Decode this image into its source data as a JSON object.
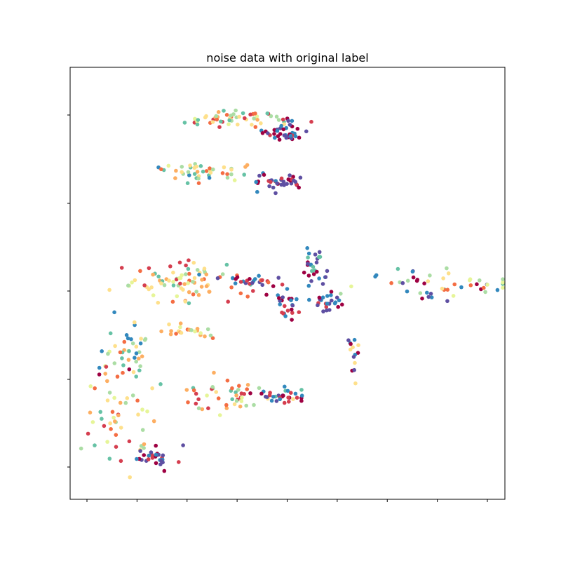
{
  "chart_data": {
    "type": "scatter",
    "title": "noise data with original label",
    "xlabel": "",
    "ylabel": "",
    "xlim": [
      0.0,
      1.0
    ],
    "ylim": [
      0.0,
      1.0
    ],
    "grid": false,
    "x_tick_count": 9,
    "y_tick_count": 5,
    "colormap": "Spectral",
    "palette": [
      "#9e0142",
      "#d53e4f",
      "#f46d43",
      "#fdae61",
      "#fee08b",
      "#e6f598",
      "#abdda4",
      "#66c2a5",
      "#3288bd",
      "#5e4fa2"
    ],
    "clusters": [
      {
        "center": [
          0.38,
          0.925
        ],
        "spread": [
          0.065,
          0.012
        ],
        "count": 55,
        "colors": [
          2,
          3,
          4,
          5,
          6,
          7,
          1
        ]
      },
      {
        "center": [
          0.49,
          0.89
        ],
        "spread": [
          0.025,
          0.012
        ],
        "count": 40,
        "colors": [
          0,
          1,
          9,
          8,
          0
        ]
      },
      {
        "center": [
          0.3,
          0.79
        ],
        "spread": [
          0.07,
          0.015
        ],
        "count": 45,
        "colors": [
          3,
          4,
          5,
          6,
          7,
          2,
          8
        ]
      },
      {
        "center": [
          0.48,
          0.765
        ],
        "spread": [
          0.035,
          0.012
        ],
        "count": 35,
        "colors": [
          9,
          8,
          0,
          1,
          9
        ]
      },
      {
        "center": [
          0.23,
          0.505
        ],
        "spread": [
          0.07,
          0.022
        ],
        "count": 70,
        "colors": [
          2,
          3,
          4,
          5,
          6,
          1,
          7
        ]
      },
      {
        "center": [
          0.29,
          0.54
        ],
        "spread": [
          0.015,
          0.02
        ],
        "count": 10,
        "colors": [
          4,
          6,
          3,
          8
        ]
      },
      {
        "center": [
          0.42,
          0.51
        ],
        "spread": [
          0.03,
          0.008
        ],
        "count": 25,
        "colors": [
          9,
          8,
          0,
          1,
          2
        ]
      },
      {
        "center": [
          0.565,
          0.55
        ],
        "spread": [
          0.012,
          0.025
        ],
        "count": 22,
        "colors": [
          9,
          8,
          0,
          7
        ]
      },
      {
        "center": [
          0.5,
          0.445
        ],
        "spread": [
          0.018,
          0.02
        ],
        "count": 25,
        "colors": [
          9,
          8,
          0,
          1
        ]
      },
      {
        "center": [
          0.605,
          0.455
        ],
        "spread": [
          0.018,
          0.01
        ],
        "count": 20,
        "colors": [
          9,
          8,
          0,
          1
        ]
      },
      {
        "center": [
          0.58,
          0.49
        ],
        "spread": [
          0.01,
          0.025
        ],
        "count": 10,
        "colors": [
          9,
          0,
          8
        ]
      },
      {
        "center": [
          0.25,
          0.38
        ],
        "spread": [
          0.04,
          0.01
        ],
        "count": 22,
        "colors": [
          2,
          3,
          4,
          5,
          6,
          7
        ]
      },
      {
        "center": [
          0.1,
          0.32
        ],
        "spread": [
          0.04,
          0.04
        ],
        "count": 45,
        "colors": [
          2,
          3,
          4,
          5,
          6,
          7,
          8,
          0
        ]
      },
      {
        "center": [
          0.34,
          0.215
        ],
        "spread": [
          0.055,
          0.02
        ],
        "count": 45,
        "colors": [
          2,
          3,
          4,
          5,
          6,
          7,
          1
        ]
      },
      {
        "center": [
          0.485,
          0.215
        ],
        "spread": [
          0.035,
          0.012
        ],
        "count": 30,
        "colors": [
          9,
          8,
          0,
          1,
          7
        ]
      },
      {
        "center": [
          0.075,
          0.15
        ],
        "spread": [
          0.035,
          0.06
        ],
        "count": 45,
        "colors": [
          2,
          3,
          4,
          5,
          6,
          7,
          1
        ]
      },
      {
        "center": [
          0.165,
          0.06
        ],
        "spread": [
          0.03,
          0.015
        ],
        "count": 30,
        "colors": [
          0,
          1,
          9,
          8
        ]
      },
      {
        "center": [
          0.665,
          0.33
        ],
        "spread": [
          0.008,
          0.03
        ],
        "count": 14,
        "colors": [
          8,
          9,
          0,
          4
        ]
      },
      {
        "center": [
          0.88,
          0.5
        ],
        "spread": [
          0.1,
          0.02
        ],
        "count": 50,
        "colors": [
          0,
          9,
          8,
          7,
          6,
          5,
          4,
          2
        ]
      }
    ]
  }
}
